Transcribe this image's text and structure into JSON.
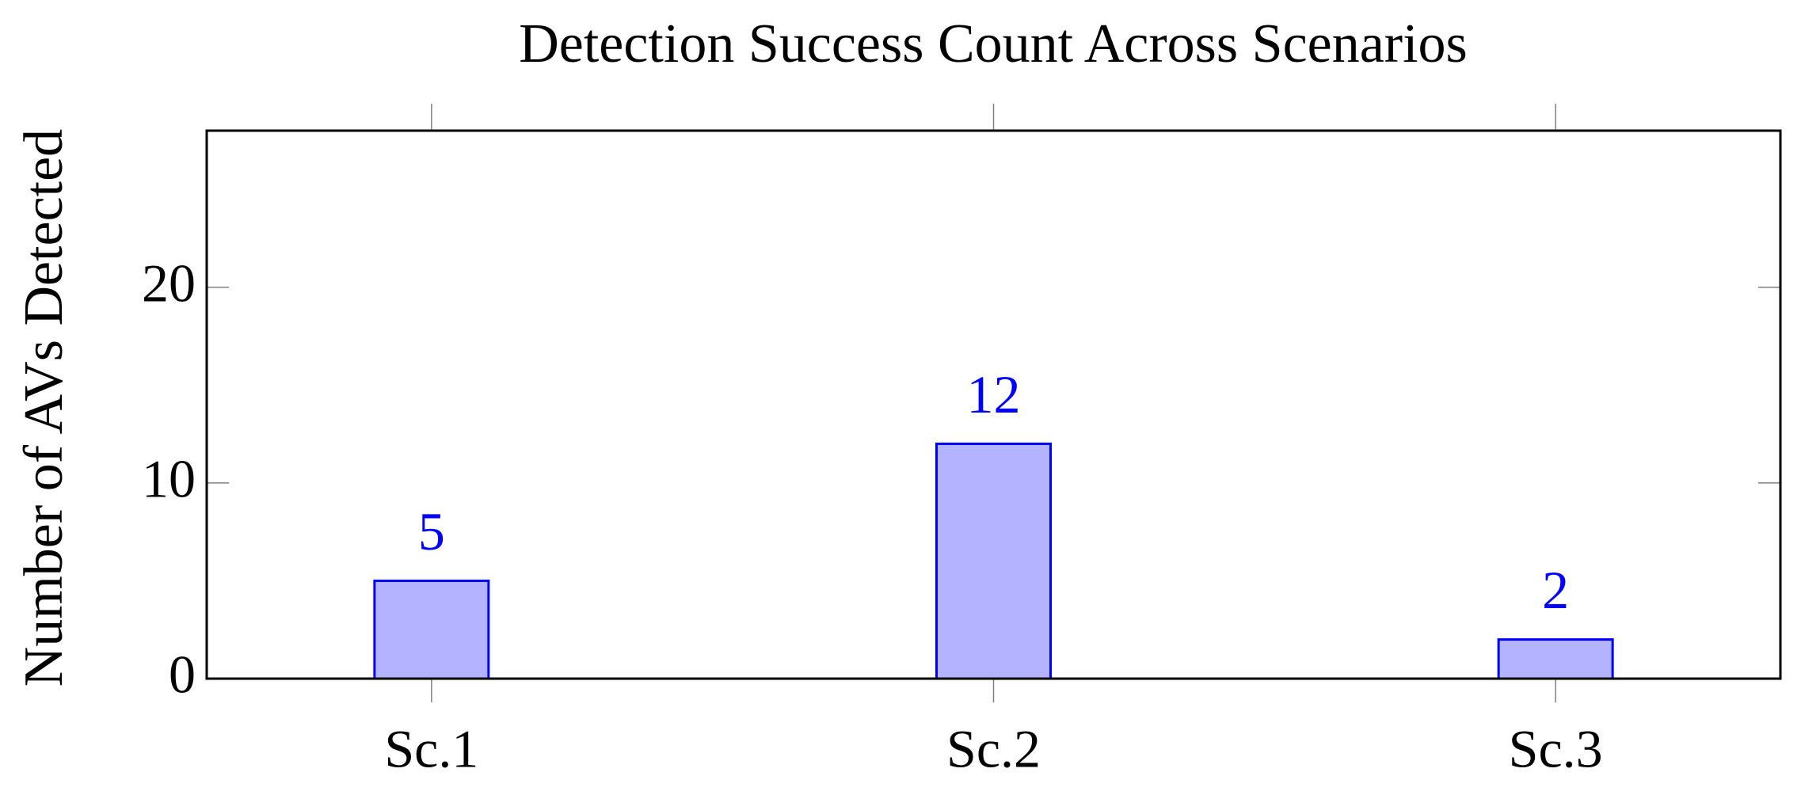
{
  "chart_data": {
    "type": "bar",
    "title": "Detection Success Count Across Scenarios",
    "ylabel": "Number of AVs Detected",
    "categories": [
      "Sc.1",
      "Sc.2",
      "Sc.3"
    ],
    "values": [
      5,
      12,
      2
    ],
    "color": "#b3b3ff",
    "edgecolor": "#0000ff",
    "label_color": "#0000ff",
    "ylim": [
      0,
      28
    ],
    "yticks": [
      0,
      10,
      20
    ]
  }
}
